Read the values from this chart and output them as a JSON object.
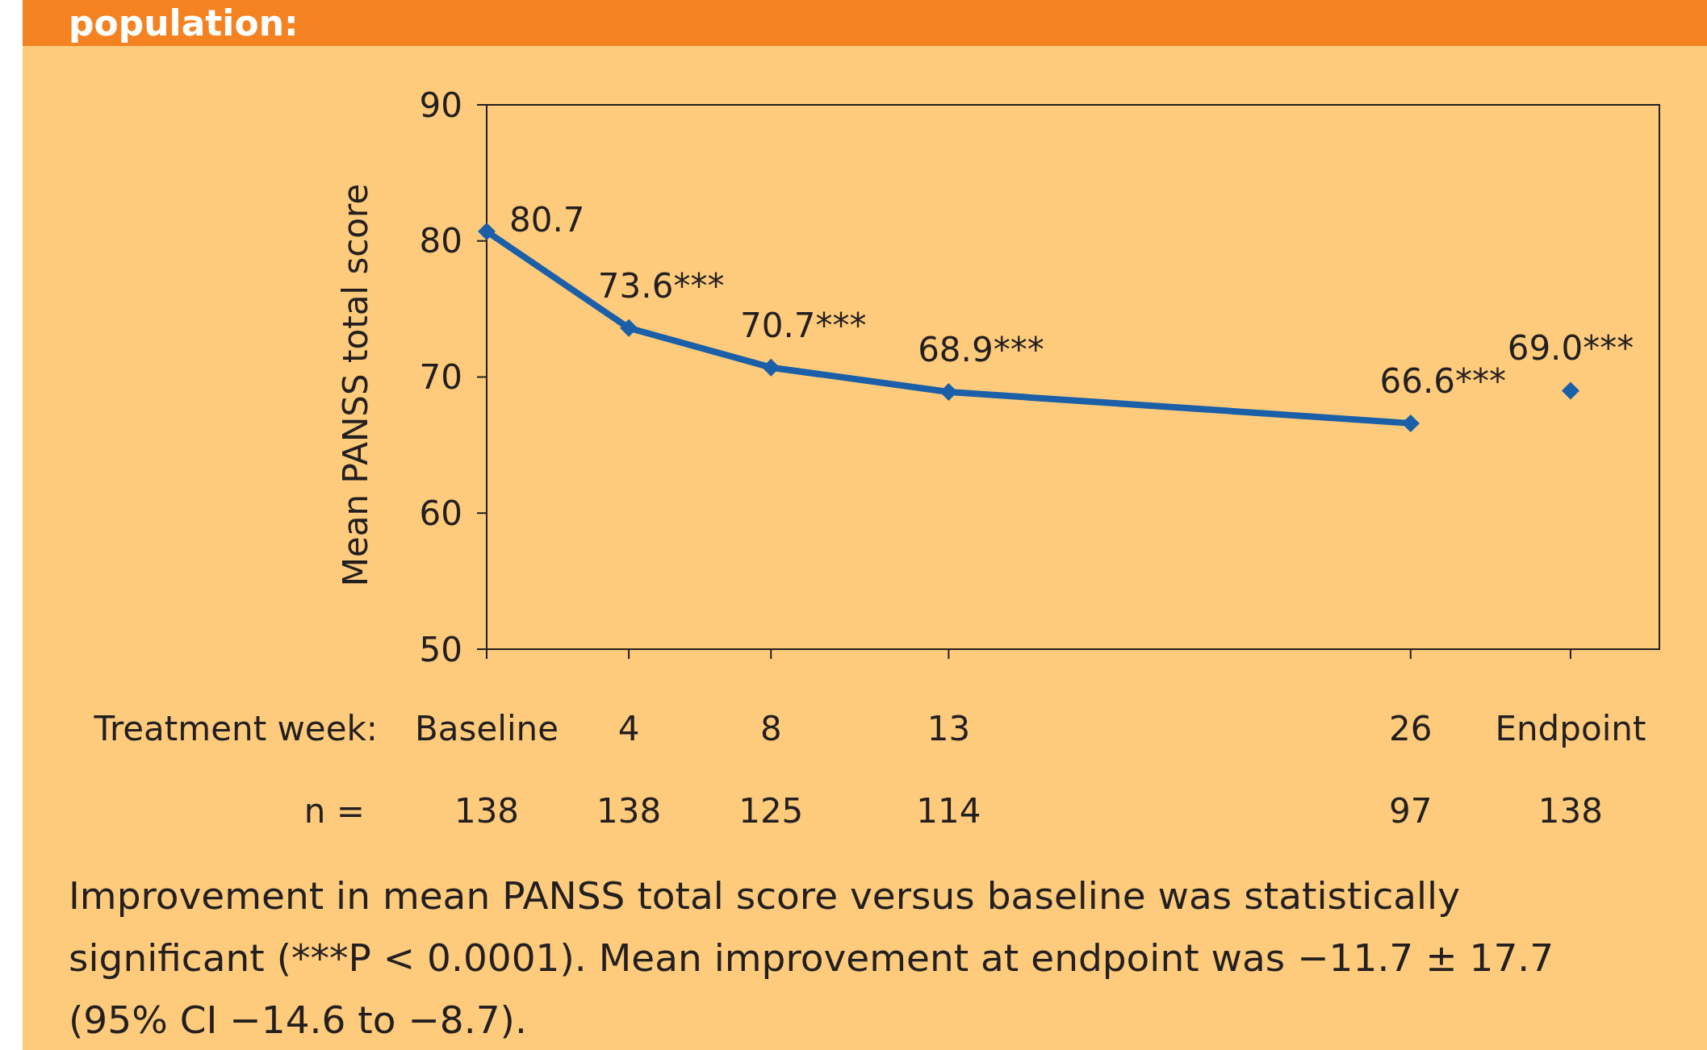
{
  "chart_data": {
    "type": "line",
    "title": "population:",
    "ylabel": "Mean PANSS total score",
    "xlabel": "Treatment week:",
    "xlim": [
      0,
      33
    ],
    "xticks": [
      {
        "value": 0,
        "label": "Baseline"
      },
      4,
      8,
      13,
      26,
      {
        "value": 30.5,
        "label": "Endpoint"
      }
    ],
    "ylim": [
      50,
      90
    ],
    "yticks": [
      50,
      60,
      70,
      80,
      90
    ],
    "grid": false,
    "marker": "diamond",
    "line_style": "solid",
    "series": [
      {
        "color": "#1a5fa8",
        "x": [
          0,
          4,
          8,
          13,
          26
        ],
        "values": [
          80.7,
          73.6,
          70.7,
          68.9,
          66.6
        ],
        "value_labels": [
          "80.7",
          "73.6***",
          "70.7***",
          "68.9***",
          "66.6***"
        ]
      },
      {
        "type": "scatter",
        "color": "#1a5fa8",
        "x": [
          30.5
        ],
        "values": [
          69.0
        ],
        "value_labels": [
          "69.0***"
        ]
      }
    ],
    "annotations": [
      "n =",
      "138",
      "138",
      "125",
      "114",
      "97",
      "138",
      "Improvement in mean PANSS total score versus baseline was statistically significant (***P < 0.0001). Mean improvement at endpoint was −11.7 ± 17.7 (95% CI −14.6 to −8.7)."
    ]
  }
}
